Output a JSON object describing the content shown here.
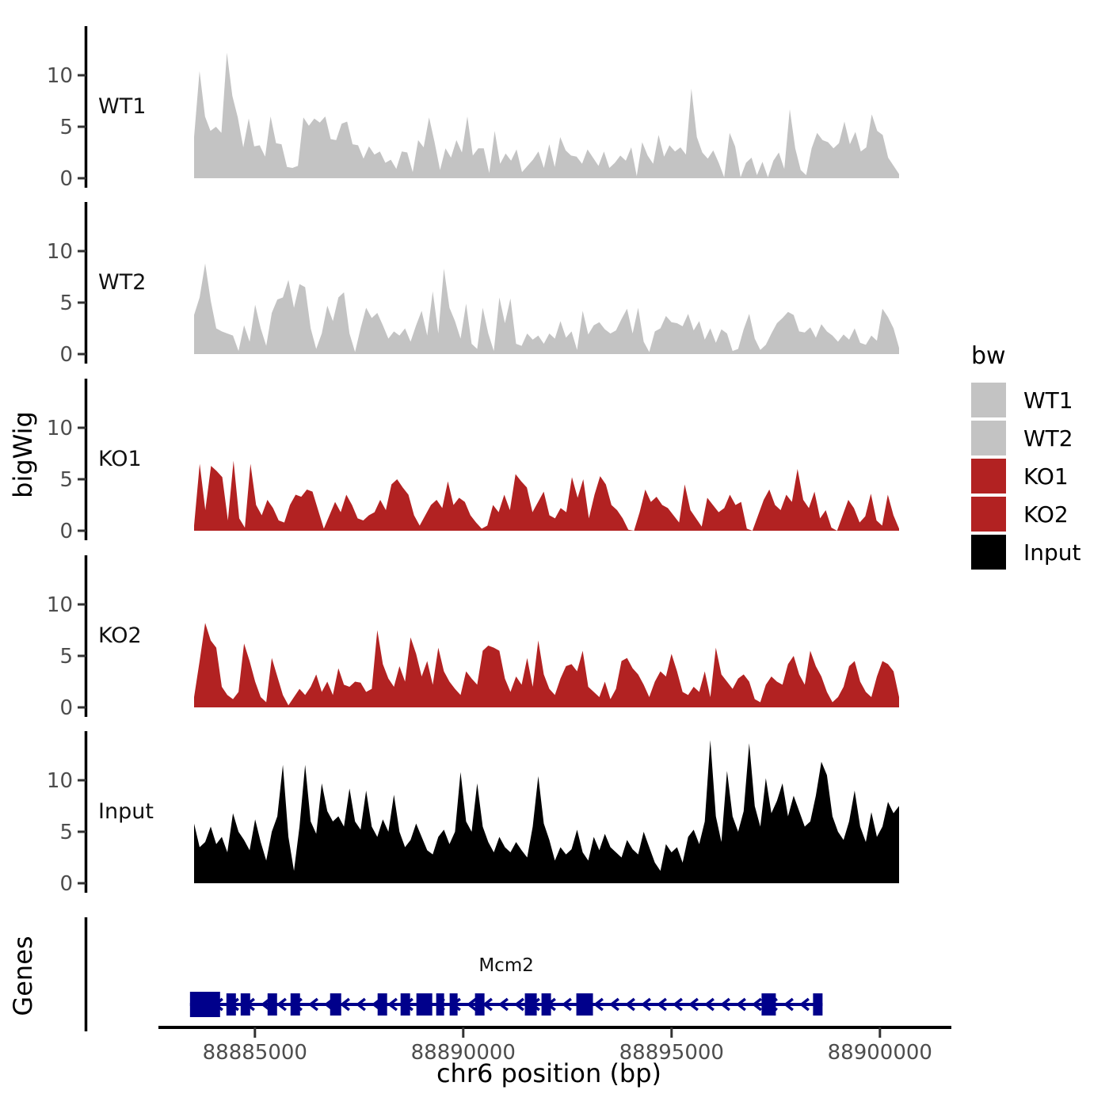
{
  "figure": {
    "background": "#ffffff"
  },
  "y_axis": {
    "label": "bigWig"
  },
  "genes_panel": {
    "label": "Genes"
  },
  "x_axis": {
    "label": "chr6 position (bp)",
    "ticks": [
      88885000,
      88890000,
      88895000,
      88900000
    ]
  },
  "legend": {
    "title": "bw",
    "entries": [
      {
        "label": "WT1",
        "color": "#c3c3c3"
      },
      {
        "label": "WT2",
        "color": "#c3c3c3"
      },
      {
        "label": "KO1",
        "color": "#b22222"
      },
      {
        "label": "KO2",
        "color": "#b22222"
      },
      {
        "label": "Input",
        "color": "#000000"
      }
    ]
  },
  "chart_data": {
    "type": "area",
    "title": "",
    "xlabel": "chr6 position (bp)",
    "ylabel": "bigWig",
    "x_start": 88883540,
    "x_end": 88900460,
    "ylim": [
      0,
      14.5
    ],
    "yticks": [
      0,
      5,
      10
    ],
    "grid": false,
    "legend_position": "right",
    "series": [
      {
        "name": "WT1",
        "color": "#c3c3c3",
        "values": [
          4.0,
          10.4,
          6.0,
          4.6,
          5.0,
          4.4,
          12.2,
          8.0,
          5.9,
          3.0,
          5.8,
          3.1,
          3.2,
          2.1,
          6.0,
          3.4,
          3.3,
          1.1,
          1.0,
          1.2,
          5.9,
          5.1,
          5.8,
          5.4,
          6.0,
          3.8,
          3.7,
          5.3,
          5.5,
          3.3,
          3.2,
          1.9,
          3.1,
          2.3,
          2.6,
          1.5,
          1.8,
          0.9,
          2.6,
          2.5,
          0.6,
          3.7,
          3.0,
          5.9,
          3.5,
          0.8,
          2.9,
          2.0,
          3.7,
          2.5,
          6.0,
          2.2,
          2.9,
          2.9,
          0.5,
          4.6,
          1.4,
          2.4,
          1.7,
          2.8,
          0.6,
          1.2,
          1.8,
          2.6,
          1.0,
          3.3,
          1.1,
          4.0,
          2.7,
          2.2,
          2.1,
          1.4,
          2.8,
          2.0,
          1.2,
          2.6,
          1.0,
          1.5,
          2.2,
          1.7,
          3.0,
          0.2,
          3.5,
          2.2,
          1.4,
          4.2,
          2.1,
          3.2,
          2.6,
          3.0,
          2.3,
          8.7,
          4.0,
          2.5,
          1.9,
          2.7,
          1.5,
          0.1,
          4.4,
          3.1,
          0.1,
          1.5,
          2.0,
          0.3,
          1.6,
          0.1,
          1.7,
          2.5,
          0.9,
          6.7,
          2.9,
          0.8,
          0.3,
          2.9,
          4.4,
          3.7,
          3.5,
          2.9,
          3.4,
          5.5,
          3.3,
          4.5,
          2.6,
          3.0,
          6.2,
          4.6,
          4.2,
          2.0,
          1.2,
          0.4
        ]
      },
      {
        "name": "WT2",
        "color": "#c3c3c3",
        "values": [
          3.8,
          5.5,
          8.8,
          5.2,
          2.5,
          2.2,
          2.0,
          1.8,
          0.3,
          2.8,
          1.2,
          4.8,
          2.5,
          0.8,
          4.0,
          5.3,
          5.5,
          7.2,
          4.5,
          6.8,
          6.5,
          2.5,
          0.5,
          2.0,
          4.7,
          3.2,
          5.5,
          6.0,
          2.0,
          0.2,
          2.5,
          4.5,
          3.5,
          4.0,
          2.8,
          1.5,
          2.2,
          1.8,
          2.5,
          1.2,
          2.8,
          4.2,
          1.8,
          6.1,
          2.0,
          8.3,
          4.5,
          3.2,
          1.5,
          4.9,
          1.0,
          0.5,
          4.5,
          2.0,
          0.3,
          5.5,
          3.0,
          5.4,
          1.0,
          0.8,
          2.0,
          1.4,
          1.8,
          1.0,
          2.0,
          1.5,
          3.2,
          1.6,
          2.2,
          0.4,
          4.2,
          1.9,
          2.8,
          3.1,
          2.4,
          2.0,
          2.3,
          3.4,
          4.4,
          2.0,
          4.5,
          1.2,
          0.2,
          2.2,
          2.5,
          3.7,
          3.1,
          3.0,
          2.7,
          3.9,
          2.3,
          3.2,
          1.4,
          2.5,
          1.1,
          2.4,
          2.0,
          0.3,
          0.5,
          2.4,
          3.9,
          1.5,
          0.4,
          0.9,
          2.0,
          3.0,
          3.5,
          4.1,
          3.8,
          2.2,
          2.1,
          2.6,
          1.6,
          2.9,
          2.2,
          1.8,
          1.2,
          1.9,
          1.4,
          2.5,
          1.1,
          0.9,
          1.8,
          1.3,
          4.4,
          3.6,
          2.5,
          0.6
        ]
      },
      {
        "name": "KO1",
        "color": "#b22222",
        "values": [
          0.5,
          6.5,
          2.0,
          6.3,
          5.8,
          5.2,
          1.0,
          6.8,
          1.2,
          0.3,
          6.5,
          2.5,
          1.5,
          3.0,
          2.2,
          1.0,
          0.8,
          2.5,
          3.5,
          3.3,
          4.0,
          3.8,
          2.0,
          0.2,
          1.5,
          2.8,
          1.8,
          3.5,
          2.5,
          1.2,
          1.0,
          1.5,
          1.8,
          3.0,
          2.0,
          4.5,
          5.0,
          4.2,
          3.5,
          1.5,
          0.5,
          1.5,
          2.5,
          3.0,
          2.2,
          4.8,
          2.5,
          3.2,
          2.8,
          1.5,
          0.8,
          0.2,
          0.5,
          2.5,
          1.8,
          3.5,
          2.0,
          5.5,
          4.8,
          4.2,
          1.8,
          2.8,
          3.8,
          1.5,
          1.2,
          2.2,
          1.8,
          5.2,
          3.2,
          5.0,
          1.2,
          3.5,
          5.3,
          4.5,
          2.5,
          2.0,
          1.2,
          0.1,
          0.0,
          1.8,
          4.0,
          2.8,
          3.3,
          2.5,
          2.2,
          1.5,
          0.8,
          4.5,
          2.0,
          1.2,
          0.4,
          3.2,
          2.5,
          1.8,
          2.2,
          3.5,
          2.5,
          2.8,
          0.2,
          0.0,
          1.5,
          3.0,
          4.0,
          2.5,
          2.0,
          3.5,
          2.8,
          6.0,
          3.0,
          2.2,
          3.8,
          1.2,
          2.0,
          0.3,
          0.0,
          1.5,
          3.0,
          2.2,
          0.8,
          1.4,
          3.6,
          1.0,
          0.5,
          3.5,
          1.5,
          0.2
        ]
      },
      {
        "name": "KO2",
        "color": "#b22222",
        "values": [
          1.0,
          4.5,
          8.2,
          6.5,
          5.8,
          2.0,
          1.2,
          0.8,
          1.5,
          6.2,
          4.5,
          2.5,
          1.0,
          0.5,
          4.8,
          3.0,
          1.2,
          0.2,
          1.0,
          1.8,
          1.2,
          2.0,
          3.2,
          1.5,
          2.5,
          1.2,
          3.8,
          2.2,
          2.0,
          2.5,
          2.4,
          1.5,
          1.8,
          7.5,
          4.2,
          2.8,
          2.0,
          4.0,
          2.5,
          6.8,
          5.2,
          3.0,
          4.5,
          2.2,
          5.8,
          3.5,
          2.5,
          1.8,
          1.2,
          3.5,
          2.8,
          2.2,
          5.5,
          6.0,
          5.8,
          5.5,
          2.8,
          1.5,
          3.0,
          2.2,
          4.8,
          2.0,
          6.5,
          3.2,
          1.8,
          1.2,
          2.8,
          4.0,
          4.2,
          3.5,
          5.5,
          2.0,
          1.5,
          1.0,
          2.5,
          0.8,
          1.8,
          4.5,
          4.8,
          3.8,
          3.2,
          2.2,
          1.0,
          2.5,
          3.5,
          3.0,
          5.2,
          3.5,
          1.5,
          1.2,
          2.0,
          1.5,
          3.5,
          1.0,
          5.8,
          3.2,
          2.5,
          1.8,
          2.8,
          3.2,
          2.5,
          0.8,
          0.5,
          2.2,
          3.0,
          2.5,
          2.2,
          4.2,
          5.0,
          3.2,
          2.2,
          5.5,
          4.0,
          3.0,
          1.5,
          0.5,
          1.0,
          2.0,
          4.0,
          4.5,
          2.5,
          1.5,
          1.0,
          3.0,
          4.5,
          4.2,
          3.5,
          1.0
        ]
      },
      {
        "name": "Input",
        "color": "#000000",
        "values": [
          5.8,
          3.5,
          4.0,
          5.5,
          3.8,
          4.5,
          3.0,
          6.8,
          5.0,
          4.2,
          3.2,
          6.2,
          4.0,
          2.2,
          5.0,
          6.5,
          11.5,
          4.5,
          1.2,
          5.5,
          11.5,
          6.0,
          4.8,
          9.7,
          7.0,
          6.0,
          6.5,
          5.5,
          9.2,
          6.0,
          5.2,
          9.0,
          5.5,
          4.5,
          6.2,
          5.0,
          8.6,
          5.0,
          3.5,
          4.2,
          5.8,
          4.5,
          3.2,
          2.8,
          4.5,
          5.2,
          3.8,
          5.0,
          10.8,
          6.0,
          5.0,
          9.7,
          5.5,
          4.0,
          3.0,
          4.5,
          3.5,
          3.0,
          4.0,
          3.2,
          2.5,
          5.5,
          10.4,
          5.8,
          4.2,
          2.2,
          3.5,
          2.8,
          3.3,
          5.2,
          3.0,
          2.2,
          4.5,
          3.2,
          4.8,
          3.5,
          3.0,
          2.5,
          4.2,
          3.3,
          2.8,
          5.0,
          3.5,
          2.0,
          1.2,
          3.8,
          3.0,
          3.5,
          2.0,
          4.5,
          5.2,
          3.8,
          6.0,
          13.9,
          6.5,
          4.0,
          10.9,
          6.5,
          5.0,
          7.0,
          13.6,
          7.5,
          5.5,
          10.2,
          6.8,
          8.0,
          9.7,
          6.5,
          8.5,
          7.0,
          5.5,
          6.0,
          8.5,
          11.8,
          10.5,
          6.5,
          5.0,
          4.2,
          6.0,
          9.0,
          5.5,
          4.0,
          6.9,
          4.5,
          5.5,
          7.9,
          6.8,
          7.5
        ]
      }
    ]
  },
  "gene_track": {
    "panel_label": "Genes",
    "gene": {
      "name": "Mcm2",
      "chromosome": "chr6",
      "strand": "-",
      "color": "#00008b",
      "start": 88883442,
      "end": 88898623,
      "exons": [
        [
          88883442,
          88884164
        ],
        [
          88884316,
          88884544
        ],
        [
          88884658,
          88884886
        ],
        [
          88885304,
          88885532
        ],
        [
          88885855,
          88886083
        ],
        [
          88886805,
          88887071
        ],
        [
          88887945,
          88888173
        ],
        [
          88888496,
          88888724
        ],
        [
          88888876,
          88889256
        ],
        [
          88889351,
          88889541
        ],
        [
          88889674,
          88889864
        ],
        [
          88890282,
          88890510
        ],
        [
          88891479,
          88891764
        ],
        [
          88891878,
          88892106
        ],
        [
          88892714,
          88893113
        ],
        [
          88897160,
          88897502
        ],
        [
          88898395,
          88898623
        ]
      ]
    }
  }
}
